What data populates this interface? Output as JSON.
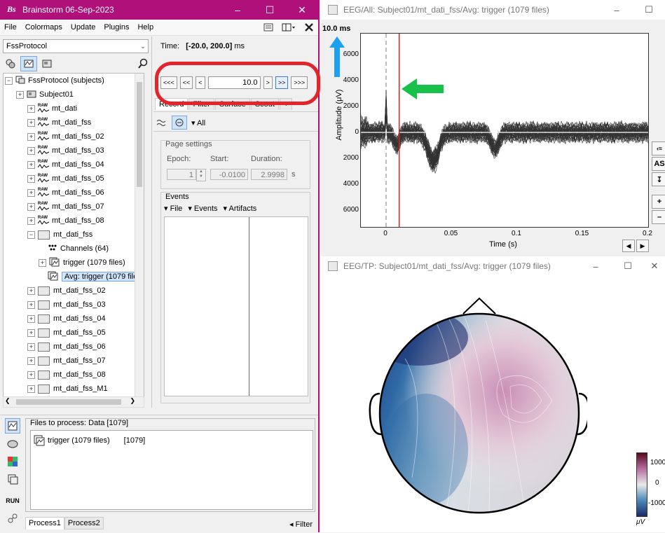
{
  "main_window": {
    "title": "Brainstorm 06-Sep-2023",
    "menu": [
      "File",
      "Colormaps",
      "Update",
      "Plugins",
      "Help"
    ],
    "protocol": "FssProtocol",
    "tree": [
      {
        "label": "FssProtocol (subjects)",
        "type": "root",
        "indent": 0
      },
      {
        "label": "Subject01",
        "type": "subject",
        "indent": 1
      },
      {
        "label": "mt_dati",
        "type": "raw",
        "indent": 2
      },
      {
        "label": "mt_dati_fss",
        "type": "raw",
        "indent": 2
      },
      {
        "label": "mt_dati_fss_02",
        "type": "raw",
        "indent": 2
      },
      {
        "label": "mt_dati_fss_03",
        "type": "raw",
        "indent": 2
      },
      {
        "label": "mt_dati_fss_04",
        "type": "raw",
        "indent": 2
      },
      {
        "label": "mt_dati_fss_05",
        "type": "raw",
        "indent": 2
      },
      {
        "label": "mt_dati_fss_06",
        "type": "raw",
        "indent": 2
      },
      {
        "label": "mt_dati_fss_07",
        "type": "raw",
        "indent": 2
      },
      {
        "label": "mt_dati_fss_08",
        "type": "raw",
        "indent": 2
      },
      {
        "label": "mt_dati_fss",
        "type": "folder-open",
        "indent": 2
      },
      {
        "label": "Channels (64)",
        "type": "channels",
        "indent": 3
      },
      {
        "label": "trigger (1079 files)",
        "type": "trials",
        "indent": 3
      },
      {
        "label": "Avg: trigger (1079 files)",
        "type": "avg-selected",
        "indent": 3
      },
      {
        "label": "mt_dati_fss_02",
        "type": "folder",
        "indent": 2
      },
      {
        "label": "mt_dati_fss_03",
        "type": "folder",
        "indent": 2
      },
      {
        "label": "mt_dati_fss_04",
        "type": "folder",
        "indent": 2
      },
      {
        "label": "mt_dati_fss_05",
        "type": "folder",
        "indent": 2
      },
      {
        "label": "mt_dati_fss_06",
        "type": "folder",
        "indent": 2
      },
      {
        "label": "mt_dati_fss_07",
        "type": "folder",
        "indent": 2
      },
      {
        "label": "mt_dati_fss_08",
        "type": "folder",
        "indent": 2
      },
      {
        "label": "mt_dati_fss_M1",
        "type": "folder",
        "indent": 2
      }
    ],
    "record": {
      "time_label": "Time:",
      "time_range": "[-20.0, 200.0]",
      "time_unit": "ms",
      "nav": [
        "<<<",
        "<<",
        "<",
        ">",
        ">>",
        ">>>"
      ],
      "current_value": "10.0",
      "tabs": [
        "Record",
        "Filter",
        "Surface",
        "Scout",
        "+"
      ],
      "montage": "All",
      "page_settings": "Page settings",
      "epoch_label": "Epoch:",
      "epoch_value": "1",
      "start_label": "Start:",
      "start_value": "-0.0100",
      "duration_label": "Duration:",
      "duration_value": "2.9998",
      "duration_unit": "s",
      "events_label": "Events",
      "events_menu": [
        "File",
        "Events",
        "Artifacts"
      ]
    },
    "process": {
      "files_header": "Files to process: Data [1079]",
      "file_label": "trigger (1079 files)",
      "file_count": "[1079]",
      "run": "RUN",
      "tabs": [
        "Process1",
        "Process2"
      ],
      "filter": "Filter"
    }
  },
  "eeg_window": {
    "title": "EEG/All: Subject01/mt_dati_fss/Avg: trigger (1079 files)",
    "time_label": "10.0 ms",
    "ylabel": "Amplitude (μV)",
    "xlabel": "Time (s)",
    "yticks": [
      "6000",
      "4000",
      "2000",
      "0",
      "2000",
      "4000",
      "6000"
    ],
    "xticks": [
      "0",
      "0.05",
      "0.1",
      "0.15",
      "0.2"
    ],
    "side_label": "AS"
  },
  "tp_window": {
    "title": "EEG/TP: Subject01/mt_dati_fss/Avg: trigger (1079 files)",
    "colorbar": [
      "1000",
      "0",
      "-1000"
    ],
    "colorbar_unit": "μV"
  }
}
